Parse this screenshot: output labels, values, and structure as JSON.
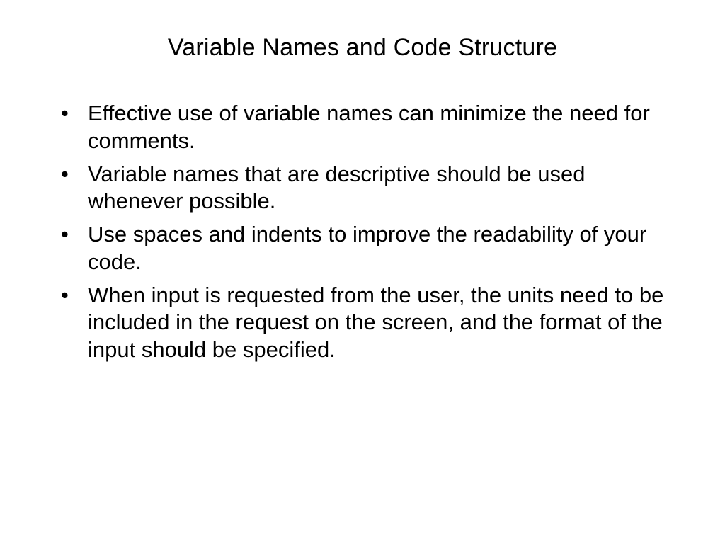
{
  "slide": {
    "title": "Variable Names and Code Structure",
    "title_fontsize": 34,
    "title_color": "#000000",
    "title_align": "center",
    "background_color": "#ffffff",
    "text_color": "#000000",
    "bullet_fontsize": 31,
    "bullet_lineheight": 1.25,
    "bullet_marker": "•",
    "bullets": [
      "Effective use of variable names can minimize the need for comments.",
      "Variable names that are descriptive should be used whenever possible.",
      "Use spaces and indents to improve the readability of your code.",
      "When input is requested from the user, the units need to be included in the request on the screen, and the format of the input should be specified."
    ]
  }
}
